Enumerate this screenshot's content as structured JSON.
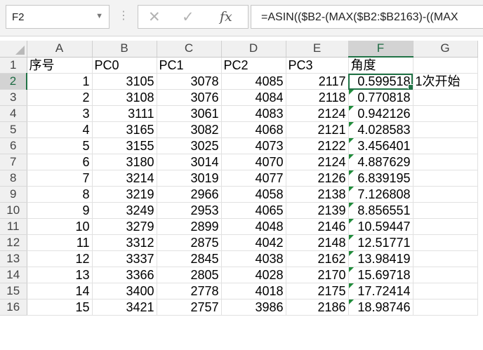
{
  "formula_bar": {
    "name_box": "F2",
    "formula": "=ASIN(($B2-(MAX($B2:$B2163)-((MAX"
  },
  "columns": [
    "A",
    "B",
    "C",
    "D",
    "E",
    "F",
    "G"
  ],
  "selected_column": "F",
  "selected_row": 2,
  "header_row": {
    "row_num": "1",
    "cells": [
      "序号",
      "PC0",
      "PC1",
      "PC2",
      "PC3",
      "角度",
      ""
    ]
  },
  "rows": [
    {
      "r": "2",
      "cells": [
        "1",
        "3105",
        "3078",
        "4085",
        "2117",
        "0.599518",
        "1次开始"
      ]
    },
    {
      "r": "3",
      "cells": [
        "2",
        "3108",
        "3076",
        "4084",
        "2118",
        "0.770818",
        ""
      ]
    },
    {
      "r": "4",
      "cells": [
        "3",
        "3111",
        "3061",
        "4083",
        "2124",
        "0.942126",
        ""
      ]
    },
    {
      "r": "5",
      "cells": [
        "4",
        "3165",
        "3082",
        "4068",
        "2121",
        "4.028583",
        ""
      ]
    },
    {
      "r": "6",
      "cells": [
        "5",
        "3155",
        "3025",
        "4073",
        "2122",
        "3.456401",
        ""
      ]
    },
    {
      "r": "7",
      "cells": [
        "6",
        "3180",
        "3014",
        "4070",
        "2124",
        "4.887629",
        ""
      ]
    },
    {
      "r": "8",
      "cells": [
        "7",
        "3214",
        "3019",
        "4077",
        "2126",
        "6.839195",
        ""
      ]
    },
    {
      "r": "9",
      "cells": [
        "8",
        "3219",
        "2966",
        "4058",
        "2138",
        "7.126808",
        ""
      ]
    },
    {
      "r": "10",
      "cells": [
        "9",
        "3249",
        "2953",
        "4065",
        "2139",
        "8.856551",
        ""
      ]
    },
    {
      "r": "11",
      "cells": [
        "10",
        "3279",
        "2899",
        "4048",
        "2146",
        "10.59447",
        ""
      ]
    },
    {
      "r": "12",
      "cells": [
        "11",
        "3312",
        "2875",
        "4042",
        "2148",
        "12.51771",
        ""
      ]
    },
    {
      "r": "13",
      "cells": [
        "12",
        "3337",
        "2845",
        "4038",
        "2162",
        "13.98419",
        ""
      ]
    },
    {
      "r": "14",
      "cells": [
        "13",
        "3366",
        "2805",
        "4028",
        "2170",
        "15.69718",
        ""
      ]
    },
    {
      "r": "15",
      "cells": [
        "14",
        "3400",
        "2778",
        "4018",
        "2175",
        "17.72414",
        ""
      ]
    },
    {
      "r": "16",
      "cells": [
        "15",
        "3421",
        "2757",
        "3986",
        "2186",
        "18.98746",
        ""
      ]
    }
  ],
  "icons": {
    "cancel": "✕",
    "enter": "✓",
    "fx": "fx",
    "dropdown": "▼",
    "dots": "⋮"
  },
  "colors": {
    "accent": "#217346",
    "error_triangle": "#1f8b3a"
  }
}
